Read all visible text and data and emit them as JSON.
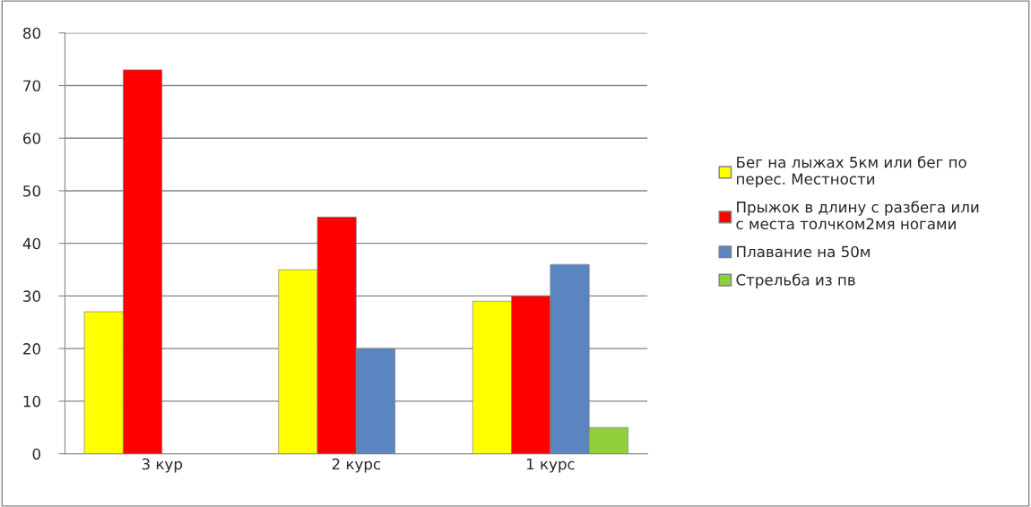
{
  "chart_data": {
    "type": "bar",
    "categories": [
      "3 кур",
      "2 курс",
      "1 курс"
    ],
    "series": [
      {
        "name": "Бег на лыжах 5км или бег по\nперес. Местности",
        "color": "#ffff00",
        "values": [
          27,
          35,
          29
        ]
      },
      {
        "name": "Прыжок в длину с разбега или\nс места толчком2мя ногами",
        "color": "#ff0000",
        "values": [
          73,
          45,
          30
        ]
      },
      {
        "name": "Плавание на 50м",
        "color": "#5b85c0",
        "values": [
          null,
          20,
          36
        ]
      },
      {
        "name": "Стрельба из пв",
        "color": "#8fcf3c",
        "values": [
          null,
          null,
          5
        ]
      }
    ],
    "ylim": [
      0,
      80
    ],
    "yticks": [
      0,
      10,
      20,
      30,
      40,
      50,
      60,
      70,
      80
    ],
    "grid": "y",
    "legend": "right"
  }
}
